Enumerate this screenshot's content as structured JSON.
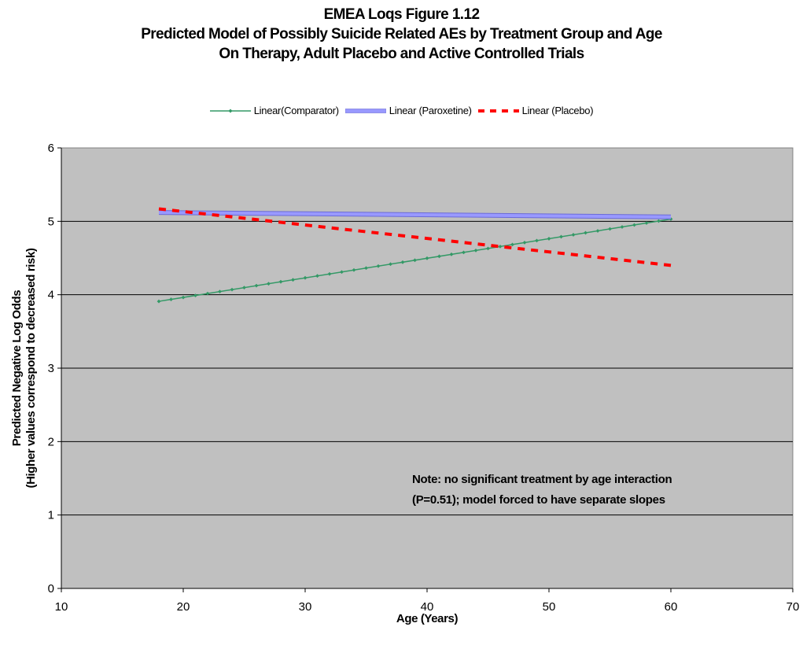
{
  "chart_data": {
    "type": "line",
    "title_lines": [
      "EMEA Loqs Figure 1.12",
      "Predicted Model of Possibly Suicide Related AEs by Treatment Group and Age",
      "On Therapy, Adult Placebo and Active Controlled Trials"
    ],
    "xlabel": "Age (Years)",
    "ylabel_lines": [
      "Predicted Negative Log Odds",
      "(Higher values correspond to decreased risk)"
    ],
    "xlim": [
      10,
      70
    ],
    "ylim": [
      0,
      6
    ],
    "xticks": [
      "10",
      "20",
      "30",
      "40",
      "50",
      "60",
      "70"
    ],
    "yticks": [
      "0",
      "1",
      "2",
      "3",
      "4",
      "5",
      "6"
    ],
    "grid": "horizontal",
    "plot_background": "#c0c0c0",
    "legend_position": "top-center",
    "series": [
      {
        "name": "Linear(Comparator)",
        "color": "#339966",
        "style": "solid-markers",
        "x": [
          18,
          60
        ],
        "y": [
          3.91,
          5.03
        ]
      },
      {
        "name": "Linear (Paroxetine)",
        "color": "#9999ff",
        "style": "thick-band",
        "x": [
          18,
          60
        ],
        "y": [
          5.12,
          5.06
        ]
      },
      {
        "name": "Linear (Placebo)",
        "color": "#ff0000",
        "style": "dashed",
        "x": [
          18,
          60
        ],
        "y": [
          5.17,
          4.4
        ]
      }
    ],
    "annotation": [
      "Note: no significant treatment by age interaction",
      "(P=0.51); model forced to have separate slopes"
    ]
  }
}
